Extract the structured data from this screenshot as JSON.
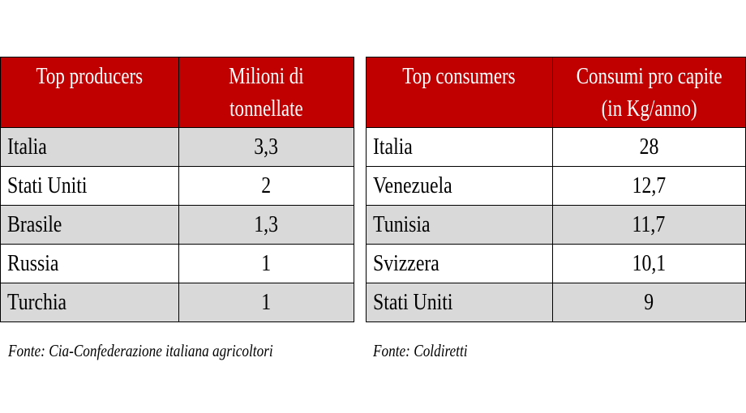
{
  "producers": {
    "headers": [
      "Top producers",
      "Milioni di\ntonnellate"
    ],
    "rows": [
      {
        "country": "Italia",
        "value": "3,3"
      },
      {
        "country": "Stati Uniti",
        "value": "2"
      },
      {
        "country": "Brasile",
        "value": "1,3"
      },
      {
        "country": "Russia",
        "value": "1"
      },
      {
        "country": "Turchia",
        "value": "1"
      }
    ],
    "source": "Fonte: Cia-Confederazione italiana agricoltori"
  },
  "consumers": {
    "headers": [
      "Top consumers",
      "Consumi pro capite\n(in Kg/anno)"
    ],
    "rows": [
      {
        "country": "Italia",
        "value": "28"
      },
      {
        "country": "Venezuela",
        "value": "12,7"
      },
      {
        "country": "Tunisia",
        "value": "11,7"
      },
      {
        "country": "Svizzera",
        "value": "10,1"
      },
      {
        "country": "Stati Uniti",
        "value": "9"
      }
    ],
    "source": "Fonte: Coldiretti"
  },
  "colors": {
    "header_bg": "#c00000",
    "header_text": "#ffffff",
    "row_shade": "#d9d9d9",
    "row_plain": "#ffffff"
  }
}
